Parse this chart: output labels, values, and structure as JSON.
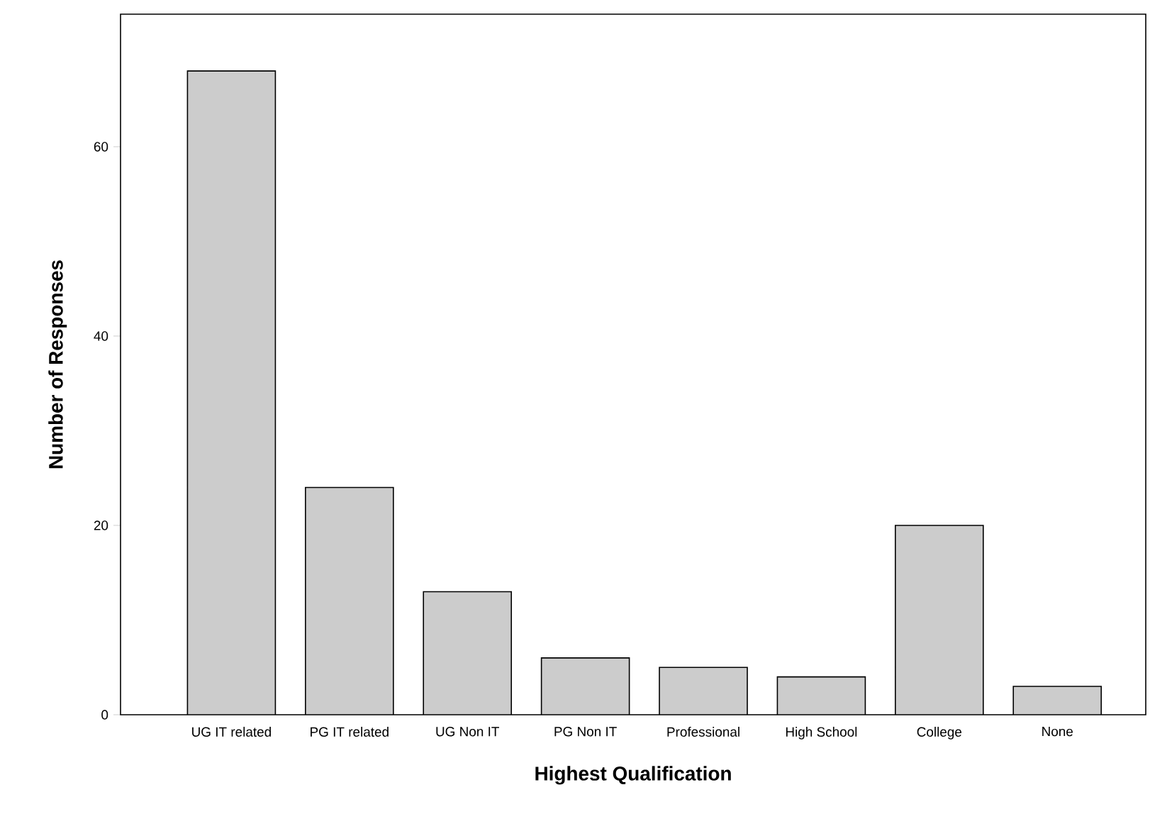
{
  "chart_data": {
    "type": "bar",
    "xlabel": "Highest Qualification",
    "ylabel": "Number of Responses",
    "categories": [
      "UG IT related",
      "PG IT related",
      "UG Non IT",
      "PG Non IT",
      "Professional",
      "High School",
      "College",
      "None"
    ],
    "values": [
      68,
      24,
      13,
      6,
      5,
      4,
      20,
      3
    ],
    "color": "#cccccc",
    "ylim": [
      0,
      74
    ],
    "yticks": [
      0,
      20,
      40,
      60
    ]
  }
}
